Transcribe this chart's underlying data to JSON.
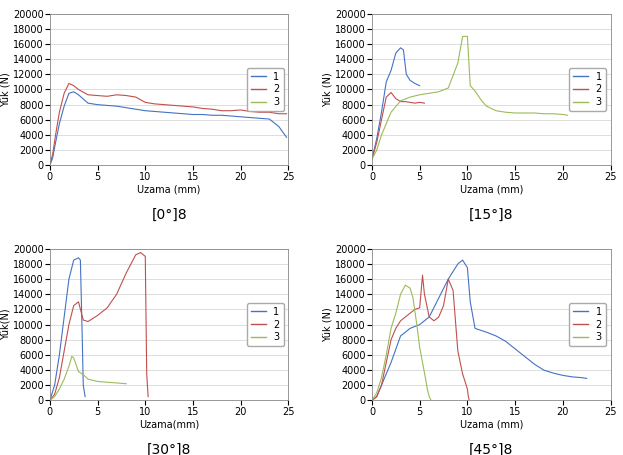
{
  "panels": [
    {
      "title": "[0°]8",
      "xlabel": "Uzama (mm)",
      "ylabel": "Yük (N)",
      "xlim": [
        0,
        25
      ],
      "ylim": [
        0,
        20000
      ],
      "yticks": [
        0,
        2000,
        4000,
        6000,
        8000,
        10000,
        12000,
        14000,
        16000,
        18000,
        20000
      ],
      "xticks": [
        0,
        5,
        10,
        15,
        20,
        25
      ],
      "series": [
        {
          "color": "#4472C4",
          "label": "1",
          "x": [
            0,
            0.3,
            0.6,
            1.0,
            1.5,
            2.0,
            2.5,
            3.0,
            4.0,
            5.0,
            6.0,
            7.0,
            7.5,
            8.0,
            8.5,
            9.0,
            10.0,
            11.0,
            12.0,
            13.0,
            14.0,
            15.0,
            16.0,
            17.0,
            18.0,
            19.0,
            20.0,
            21.0,
            22.0,
            23.0,
            24.0,
            24.8
          ],
          "y": [
            0,
            1000,
            3000,
            5500,
            7800,
            9500,
            9700,
            9300,
            8200,
            8000,
            7900,
            7800,
            7700,
            7600,
            7500,
            7400,
            7200,
            7100,
            7000,
            6900,
            6800,
            6700,
            6700,
            6600,
            6600,
            6500,
            6400,
            6300,
            6200,
            6100,
            5100,
            3700
          ]
        },
        {
          "color": "#C0504D",
          "label": "2",
          "x": [
            0,
            0.3,
            0.6,
            1.0,
            1.5,
            2.0,
            2.5,
            3.0,
            4.0,
            5.0,
            6.0,
            7.0,
            8.0,
            9.0,
            10.0,
            11.0,
            12.0,
            13.0,
            14.0,
            15.0,
            16.0,
            17.0,
            18.0,
            19.0,
            20.0,
            21.0,
            22.0,
            23.0,
            24.0,
            24.8
          ],
          "y": [
            0,
            1500,
            4000,
            7000,
            9500,
            10800,
            10500,
            10000,
            9300,
            9200,
            9100,
            9300,
            9200,
            9000,
            8300,
            8100,
            8000,
            7900,
            7800,
            7700,
            7500,
            7400,
            7200,
            7200,
            7300,
            7100,
            7000,
            7000,
            6800,
            6800
          ]
        },
        {
          "color": "#9BBB59",
          "label": "3",
          "x": [],
          "y": []
        }
      ]
    },
    {
      "title": "[15°]8",
      "xlabel": "Uzama (mm)",
      "ylabel": "Yük (N)",
      "xlim": [
        0,
        25
      ],
      "ylim": [
        0,
        20000
      ],
      "yticks": [
        0,
        2000,
        4000,
        6000,
        8000,
        10000,
        12000,
        14000,
        16000,
        18000,
        20000
      ],
      "xticks": [
        0,
        5,
        10,
        15,
        20,
        25
      ],
      "series": [
        {
          "color": "#4472C4",
          "label": "1",
          "x": [
            0,
            0.5,
            1.0,
            1.5,
            2.0,
            2.5,
            3.0,
            3.3,
            3.6,
            4.0,
            4.5,
            5.0
          ],
          "y": [
            800,
            3500,
            7000,
            11000,
            12500,
            14800,
            15500,
            15200,
            12000,
            11200,
            10800,
            10500
          ]
        },
        {
          "color": "#C0504D",
          "label": "2",
          "x": [
            0,
            0.5,
            1.0,
            1.5,
            2.0,
            2.5,
            3.0,
            3.5,
            4.0,
            4.5,
            5.0,
            5.5
          ],
          "y": [
            800,
            3000,
            6000,
            9000,
            9600,
            8800,
            8400,
            8400,
            8300,
            8200,
            8300,
            8200
          ]
        },
        {
          "color": "#9BBB59",
          "label": "3",
          "x": [
            0,
            0.5,
            1.0,
            2.0,
            3.0,
            4.0,
            5.0,
            6.0,
            7.0,
            8.0,
            9.0,
            9.5,
            10.0,
            10.3,
            10.8,
            11.5,
            12.0,
            13.0,
            14.0,
            15.0,
            16.0,
            17.0,
            18.0,
            19.0,
            20.0,
            20.5
          ],
          "y": [
            800,
            2000,
            4000,
            7000,
            8500,
            9000,
            9300,
            9500,
            9700,
            10200,
            13500,
            17000,
            17000,
            10500,
            9800,
            8500,
            7800,
            7200,
            7000,
            6900,
            6900,
            6900,
            6800,
            6800,
            6700,
            6600
          ]
        }
      ]
    },
    {
      "title": "[30°]8",
      "xlabel": "Uzama(mm)",
      "ylabel": "Yük(N)",
      "xlim": [
        0,
        25
      ],
      "ylim": [
        0,
        20000
      ],
      "yticks": [
        0,
        2000,
        4000,
        6000,
        8000,
        10000,
        12000,
        14000,
        16000,
        18000,
        20000
      ],
      "xticks": [
        0,
        5,
        10,
        15,
        20,
        25
      ],
      "series": [
        {
          "color": "#4472C4",
          "label": "1",
          "x": [
            0,
            0.5,
            1.0,
            1.5,
            2.0,
            2.5,
            3.0,
            3.2,
            3.4,
            3.5,
            3.7
          ],
          "y": [
            0,
            2000,
            6000,
            11000,
            16000,
            18500,
            18800,
            18500,
            8000,
            2000,
            500
          ]
        },
        {
          "color": "#C0504D",
          "label": "2",
          "x": [
            0,
            0.5,
            1.0,
            1.5,
            2.0,
            2.5,
            3.0,
            3.5,
            4.0,
            5.0,
            6.0,
            7.0,
            8.0,
            9.0,
            9.5,
            10.0,
            10.15,
            10.3
          ],
          "y": [
            0,
            800,
            3000,
            6500,
            10000,
            12500,
            13000,
            10600,
            10400,
            11200,
            12200,
            14000,
            16800,
            19200,
            19500,
            19000,
            3500,
            500
          ]
        },
        {
          "color": "#9BBB59",
          "label": "3",
          "x": [
            0,
            0.5,
            1.0,
            1.5,
            2.0,
            2.3,
            2.5,
            3.0,
            3.5,
            4.0,
            5.0,
            6.0,
            7.0,
            7.5,
            8.0
          ],
          "y": [
            0,
            500,
            1500,
            2800,
            4500,
            5800,
            5600,
            3800,
            3400,
            2800,
            2500,
            2400,
            2300,
            2250,
            2200
          ]
        }
      ]
    },
    {
      "title": "[45°]8",
      "xlabel": "Uzama (mm)",
      "ylabel": "Yük (N)",
      "xlim": [
        0,
        25
      ],
      "ylim": [
        0,
        20000
      ],
      "yticks": [
        0,
        2000,
        4000,
        6000,
        8000,
        10000,
        12000,
        14000,
        16000,
        18000,
        20000
      ],
      "xticks": [
        0,
        5,
        10,
        15,
        20,
        25
      ],
      "series": [
        {
          "color": "#4472C4",
          "label": "1",
          "x": [
            0,
            0.5,
            1.0,
            2.0,
            3.0,
            4.0,
            5.0,
            6.0,
            7.0,
            8.0,
            9.0,
            9.5,
            10.0,
            10.3,
            10.8,
            11.5,
            12.0,
            13.0,
            14.0,
            15.0,
            16.0,
            17.0,
            18.0,
            19.0,
            20.0,
            21.0,
            22.0,
            22.5
          ],
          "y": [
            0,
            500,
            2000,
            5000,
            8500,
            9500,
            10000,
            11000,
            13500,
            16000,
            18000,
            18500,
            17500,
            13000,
            9500,
            9200,
            9000,
            8500,
            7800,
            6800,
            5800,
            4800,
            4000,
            3600,
            3300,
            3100,
            3000,
            2900
          ]
        },
        {
          "color": "#C0504D",
          "label": "2",
          "x": [
            0,
            0.5,
            1.0,
            1.5,
            2.0,
            2.5,
            3.0,
            3.5,
            4.0,
            4.5,
            5.0,
            5.3,
            5.5,
            6.0,
            6.5,
            7.0,
            7.5,
            8.0,
            8.5,
            9.0,
            9.5,
            10.0,
            10.1,
            10.2
          ],
          "y": [
            0,
            500,
            2000,
            5000,
            8000,
            9500,
            10500,
            11000,
            11500,
            12000,
            12200,
            16500,
            14000,
            11000,
            10500,
            11000,
            12500,
            16000,
            14500,
            6500,
            3500,
            1500,
            500,
            0
          ]
        },
        {
          "color": "#9BBB59",
          "label": "3",
          "x": [
            0,
            0.5,
            1.0,
            1.5,
            2.0,
            2.5,
            3.0,
            3.5,
            4.0,
            4.3,
            4.7,
            5.0,
            5.3,
            5.6,
            5.8,
            6.0,
            6.2
          ],
          "y": [
            0,
            1000,
            3000,
            6000,
            9500,
            11500,
            14000,
            15200,
            14800,
            13500,
            10000,
            7000,
            5000,
            3000,
            1500,
            500,
            0
          ]
        }
      ]
    }
  ],
  "bg_color": "#ffffff",
  "grid_color": "#d0d0d0",
  "plot_linewidth": 0.8,
  "label_fontsize": 7,
  "tick_fontsize": 7,
  "legend_fontsize": 7,
  "subtitle_fontsize": 10
}
